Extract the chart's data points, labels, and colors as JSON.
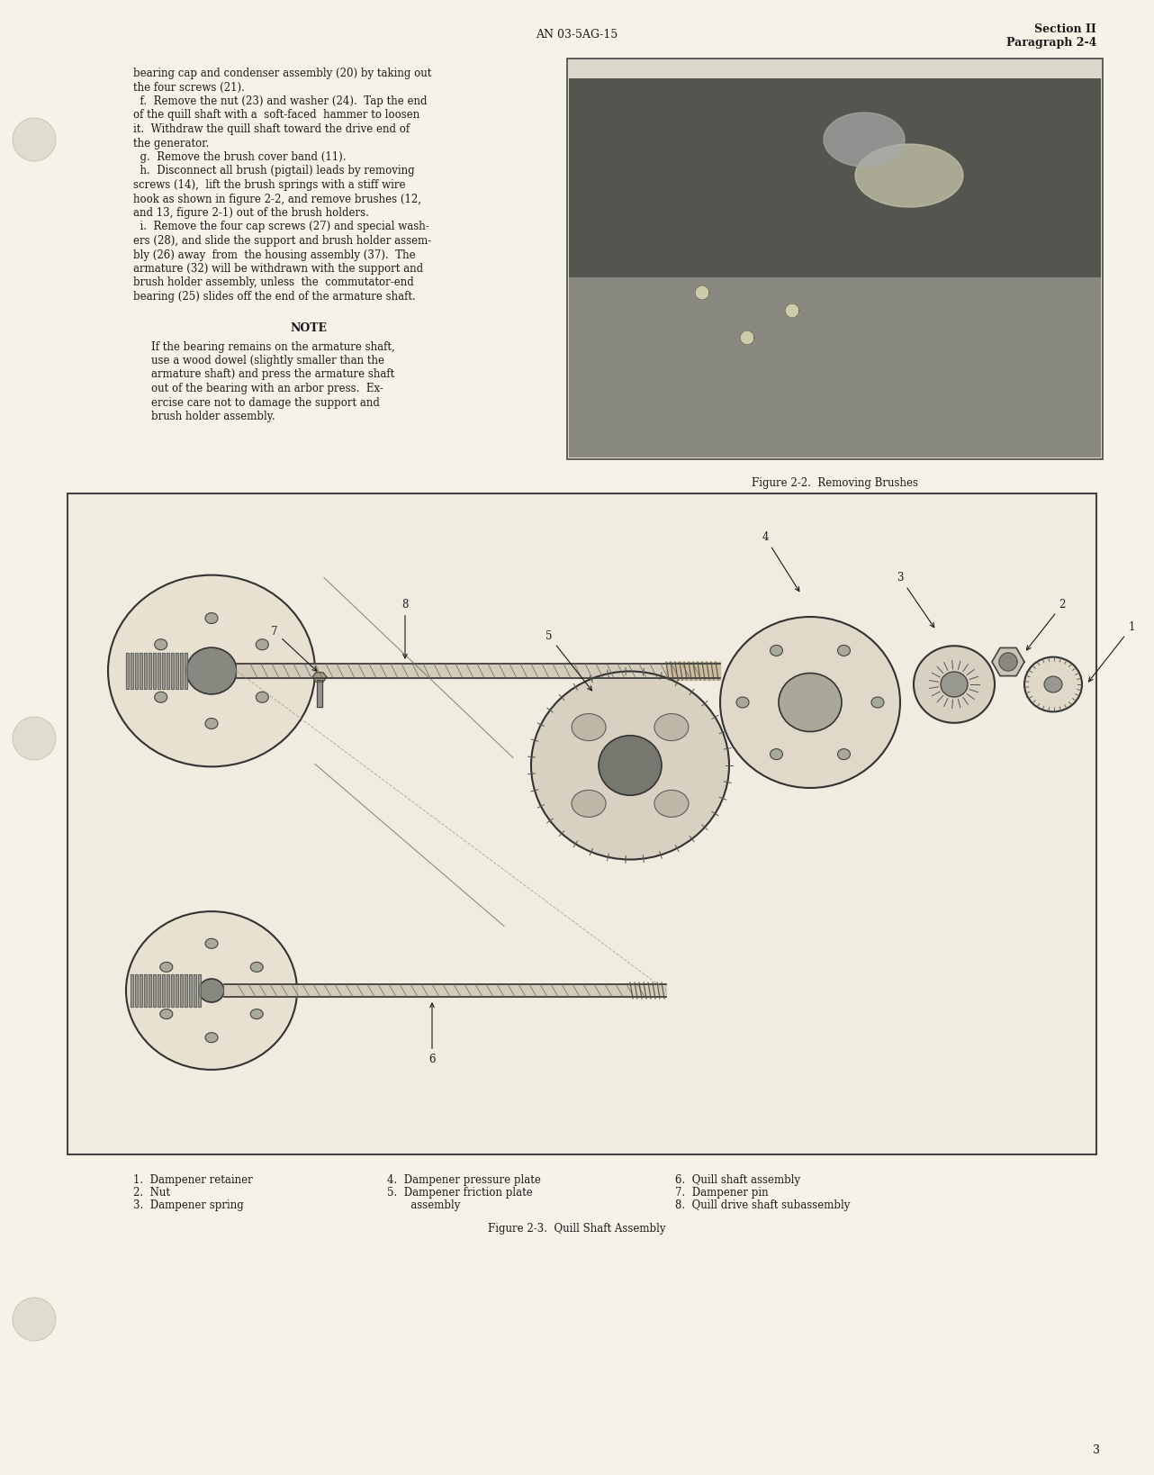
{
  "page_bg": "#f5f2e8",
  "header_center": "AN 03-5AG-15",
  "header_right_line1": "Section II",
  "header_right_line2": "Paragraph 2-4",
  "page_number": "3",
  "body_text_col1": [
    "bearing cap and condenser assembly (20) by taking out",
    "the four screws (21).",
    "  f.  Remove the nut (23) and washer (24).  Tap the end",
    "of the quill shaft with a  soft-faced  hammer to loosen",
    "it.  Withdraw the quill shaft toward the drive end of",
    "the generator.",
    "  g.  Remove the brush cover band (11).",
    "  h.  Disconnect all brush (pigtail) leads by removing",
    "screws (14),  lift the brush springs with a stiff wire",
    "hook as shown in figure 2-2, and remove brushes (12,",
    "and 13, figure 2-1) out of the brush holders.",
    "  i.  Remove the four cap screws (27) and special wash-",
    "ers (28), and slide the support and brush holder assem-",
    "bly (26) away  from  the housing assembly (37).  The",
    "armature (32) will be withdrawn with the support and",
    "brush holder assembly, unless  the  commutator-end",
    "bearing (25) slides off the end of the armature shaft."
  ],
  "note_header": "NOTE",
  "note_text": [
    "If the bearing remains on the armature shaft,",
    "use a wood dowel (slightly smaller than the",
    "armature shaft) and press the armature shaft",
    "out of the bearing with an arbor press.  Ex-",
    "ercise care not to damage the support and",
    "brush holder assembly."
  ],
  "fig22_caption": "Figure 2-2.  Removing Brushes",
  "fig23_caption": "Figure 2-3.  Quill Shaft Assembly",
  "legend_col1": [
    "1.  Dampener retainer",
    "2.  Nut",
    "3.  Dampener spring"
  ],
  "legend_col2": [
    "4.  Dampener pressure plate",
    "5.  Dampener friction plate",
    "       assembly"
  ],
  "legend_col3": [
    "6.  Quill shaft assembly",
    "7.  Dampener pin",
    "8.  Quill drive shaft subassembly"
  ],
  "text_color": "#1a1a1a",
  "body_fs": 8.5,
  "note_fs": 8.5,
  "caption_fs": 8.5,
  "legend_fs": 8.5,
  "header_fs": 9.0
}
